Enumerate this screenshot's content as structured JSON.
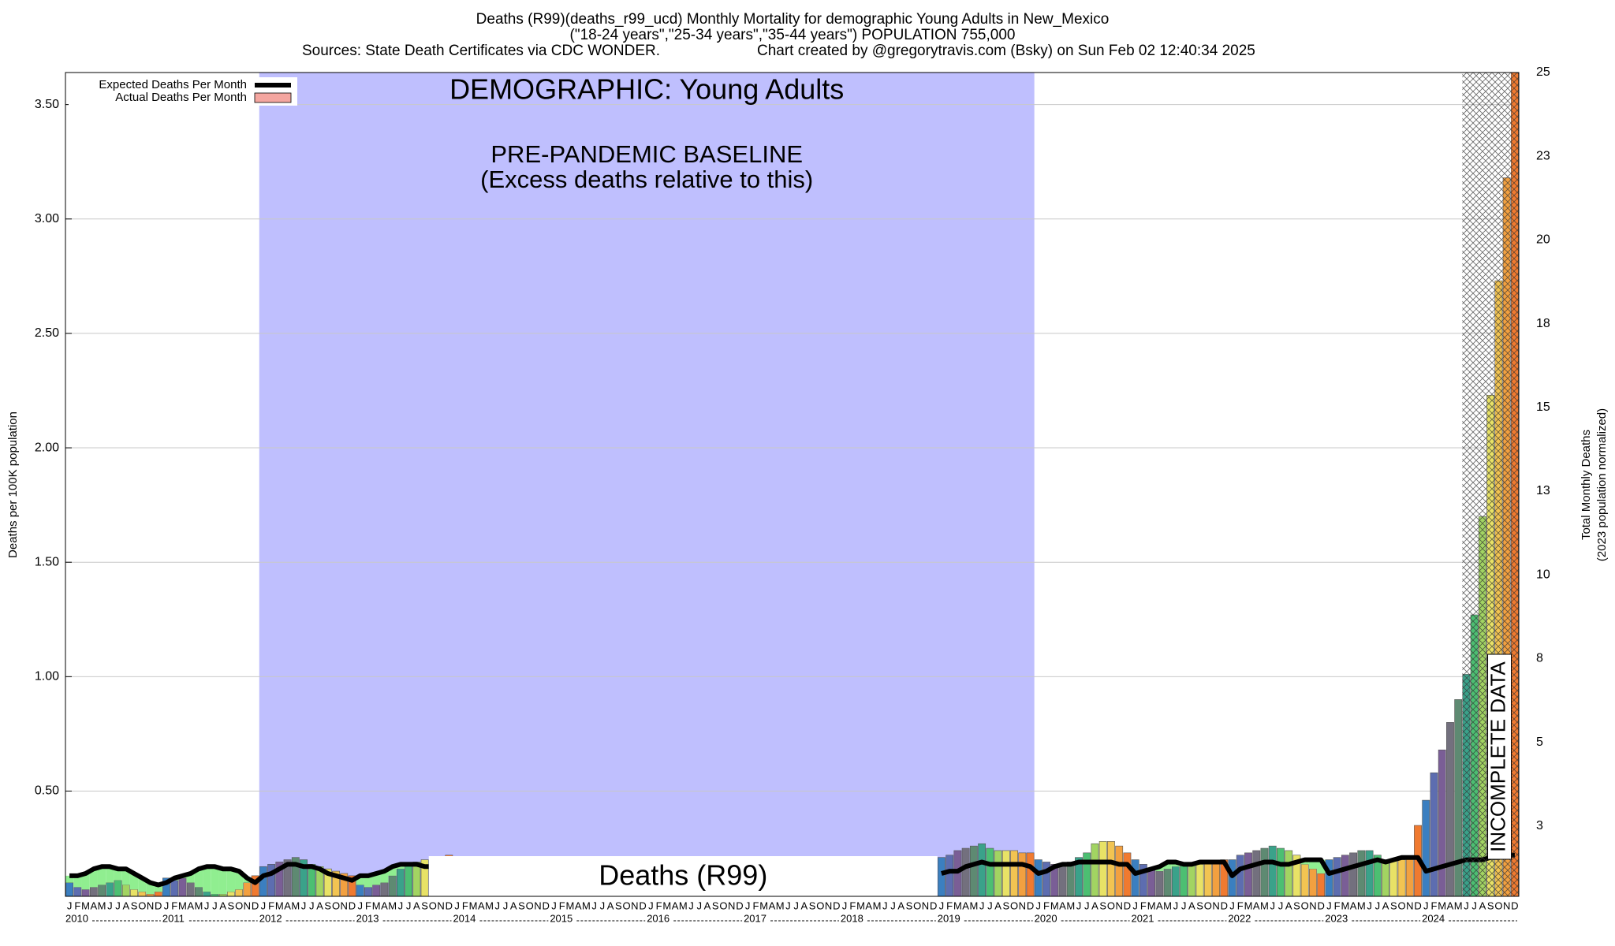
{
  "chart_data": {
    "type": "bar",
    "title": "Deaths (R99)(deaths_r99_ucd) Monthly Mortality for demographic Young Adults in New_Mexico",
    "subtitle": "(\"18-24 years\",\"25-34 years\",\"35-44 years\") POPULATION 755,000",
    "sources": "Sources: State Death Certificates via CDC WONDER.",
    "credit": "Chart created by @gregorytravis.com (Bsky) on Sun Feb 02 12:40:34 2025",
    "ylabel": "Deaths per 100K population",
    "y2label": [
      "Total Monthly Deaths",
      "(2023 population normalized)"
    ],
    "annotations": [
      "DEMOGRAPHIC: Young Adults",
      "PRE-PANDEMIC BASELINE",
      "(Excess deaths relative to this)",
      "Deaths (R99)",
      "INCOMPLETE DATA"
    ],
    "years": [
      2010,
      2011,
      2012,
      2013,
      2014,
      2015,
      2016,
      2017,
      2018,
      2019,
      2020,
      2021,
      2022,
      2023,
      2024
    ],
    "month_labels": [
      "J",
      "F",
      "M",
      "A",
      "M",
      "J",
      "J",
      "A",
      "S",
      "O",
      "N",
      "D"
    ],
    "month_colors": [
      "#3b7fc0",
      "#5d6db0",
      "#7a5e96",
      "#73707e",
      "#5e8a72",
      "#3aa28a",
      "#4cbf72",
      "#a2d462",
      "#e8e266",
      "#f2c452",
      "#f2a040",
      "#f07a30"
    ],
    "deficit_color": "#90ee90",
    "baseline_color": "#bfbffe",
    "series": [
      {
        "name": "Expected Deaths Per Month",
        "color": "#000000",
        "values": [
          0.13,
          0.13,
          0.14,
          0.16,
          0.17,
          0.17,
          0.16,
          0.16,
          0.14,
          0.12,
          0.1,
          0.09,
          0.1,
          0.12,
          0.13,
          0.14,
          0.16,
          0.17,
          0.17,
          0.16,
          0.16,
          0.15,
          0.12,
          0.1,
          0.13,
          0.14,
          0.16,
          0.18,
          0.18,
          0.17,
          0.17,
          0.16,
          0.14,
          0.13,
          0.12,
          0.11,
          0.13,
          0.13,
          0.14,
          0.15,
          0.17,
          0.18,
          0.18,
          0.18,
          0.17,
          0.17,
          0.16,
          0.15,
          null,
          null,
          null,
          null,
          null,
          null,
          null,
          null,
          null,
          null,
          null,
          null,
          null,
          null,
          null,
          null,
          null,
          null,
          null,
          null,
          null,
          null,
          null,
          null,
          null,
          null,
          null,
          null,
          null,
          null,
          null,
          null,
          null,
          null,
          null,
          null,
          null,
          null,
          null,
          null,
          null,
          null,
          null,
          null,
          null,
          null,
          null,
          null,
          null,
          null,
          null,
          null,
          null,
          null,
          null,
          null,
          null,
          null,
          null,
          null,
          0.14,
          0.15,
          0.15,
          0.17,
          0.18,
          0.19,
          0.18,
          0.18,
          0.18,
          0.18,
          0.18,
          0.17,
          0.14,
          0.15,
          0.17,
          0.18,
          0.18,
          0.19,
          0.19,
          0.19,
          0.19,
          0.19,
          0.18,
          0.18,
          0.14,
          0.15,
          0.16,
          0.17,
          0.19,
          0.19,
          0.18,
          0.18,
          0.19,
          0.19,
          0.19,
          0.19,
          0.13,
          0.16,
          0.17,
          0.18,
          0.19,
          0.19,
          0.18,
          0.18,
          0.19,
          0.2,
          0.2,
          0.2,
          0.14,
          0.15,
          0.16,
          0.17,
          0.18,
          0.19,
          0.2,
          0.19,
          0.2,
          0.21,
          0.21,
          0.21,
          0.15,
          0.16,
          0.17,
          0.18,
          0.19,
          0.2,
          0.2,
          0.2,
          0.21,
          0.21,
          0.22,
          0.22
        ]
      },
      {
        "name": "Actual Deaths Per Month",
        "color": "#f4a6a0",
        "values": [
          0.1,
          0.08,
          0.07,
          0.08,
          0.09,
          0.1,
          0.11,
          0.09,
          0.07,
          0.06,
          0.05,
          0.06,
          0.12,
          0.11,
          0.12,
          0.1,
          0.08,
          0.06,
          0.05,
          0.05,
          0.06,
          0.07,
          0.1,
          0.13,
          0.17,
          0.18,
          0.19,
          0.2,
          0.21,
          0.2,
          0.18,
          0.17,
          0.16,
          0.15,
          0.14,
          0.13,
          0.09,
          0.08,
          0.09,
          0.1,
          0.13,
          0.16,
          0.18,
          0.19,
          0.2,
          0.2,
          0.21,
          0.22,
          null,
          null,
          null,
          null,
          null,
          null,
          null,
          null,
          null,
          null,
          null,
          null,
          null,
          null,
          null,
          null,
          null,
          null,
          null,
          null,
          null,
          null,
          null,
          null,
          null,
          null,
          null,
          null,
          null,
          null,
          null,
          null,
          null,
          null,
          null,
          null,
          null,
          null,
          null,
          null,
          null,
          null,
          null,
          null,
          null,
          null,
          null,
          null,
          null,
          null,
          null,
          null,
          null,
          null,
          null,
          null,
          null,
          null,
          null,
          null,
          0.21,
          0.22,
          0.24,
          0.25,
          0.26,
          0.27,
          0.25,
          0.24,
          0.24,
          0.24,
          0.23,
          0.23,
          0.2,
          0.19,
          0.18,
          0.17,
          0.19,
          0.21,
          0.23,
          0.27,
          0.28,
          0.28,
          0.26,
          0.23,
          0.2,
          0.18,
          0.16,
          0.15,
          0.16,
          0.17,
          0.18,
          0.18,
          0.18,
          0.19,
          0.19,
          0.2,
          0.2,
          0.22,
          0.23,
          0.24,
          0.25,
          0.26,
          0.25,
          0.24,
          0.22,
          0.18,
          0.16,
          0.14,
          0.2,
          0.21,
          0.22,
          0.23,
          0.24,
          0.24,
          0.22,
          0.2,
          0.2,
          0.2,
          0.21,
          0.35,
          0.46,
          0.58,
          0.68,
          0.8,
          0.9,
          1.01,
          1.27,
          1.7,
          2.23,
          2.73,
          3.18,
          3.64
        ]
      }
    ],
    "ylim": [
      0.04,
      3.64
    ],
    "yticks": [
      {
        "value": 0.5,
        "label": "0.50"
      },
      {
        "value": 1.0,
        "label": "1.00"
      },
      {
        "value": 1.5,
        "label": "1.50"
      },
      {
        "value": 2.0,
        "label": "2.00"
      },
      {
        "value": 2.5,
        "label": "2.50"
      },
      {
        "value": 3.0,
        "label": "3.00"
      },
      {
        "value": 3.5,
        "label": "3.50"
      }
    ],
    "y2lim": [
      0.4,
      25
    ],
    "y2ticks": [
      {
        "value": 2.5,
        "label": "3"
      },
      5,
      {
        "value": 7.5,
        "label": "8"
      },
      10,
      {
        "value": 12.5,
        "label": "13"
      },
      15,
      {
        "value": 17.5,
        "label": "18"
      },
      20,
      {
        "value": 22.5,
        "label": "23"
      },
      25
    ],
    "grid": true
  }
}
